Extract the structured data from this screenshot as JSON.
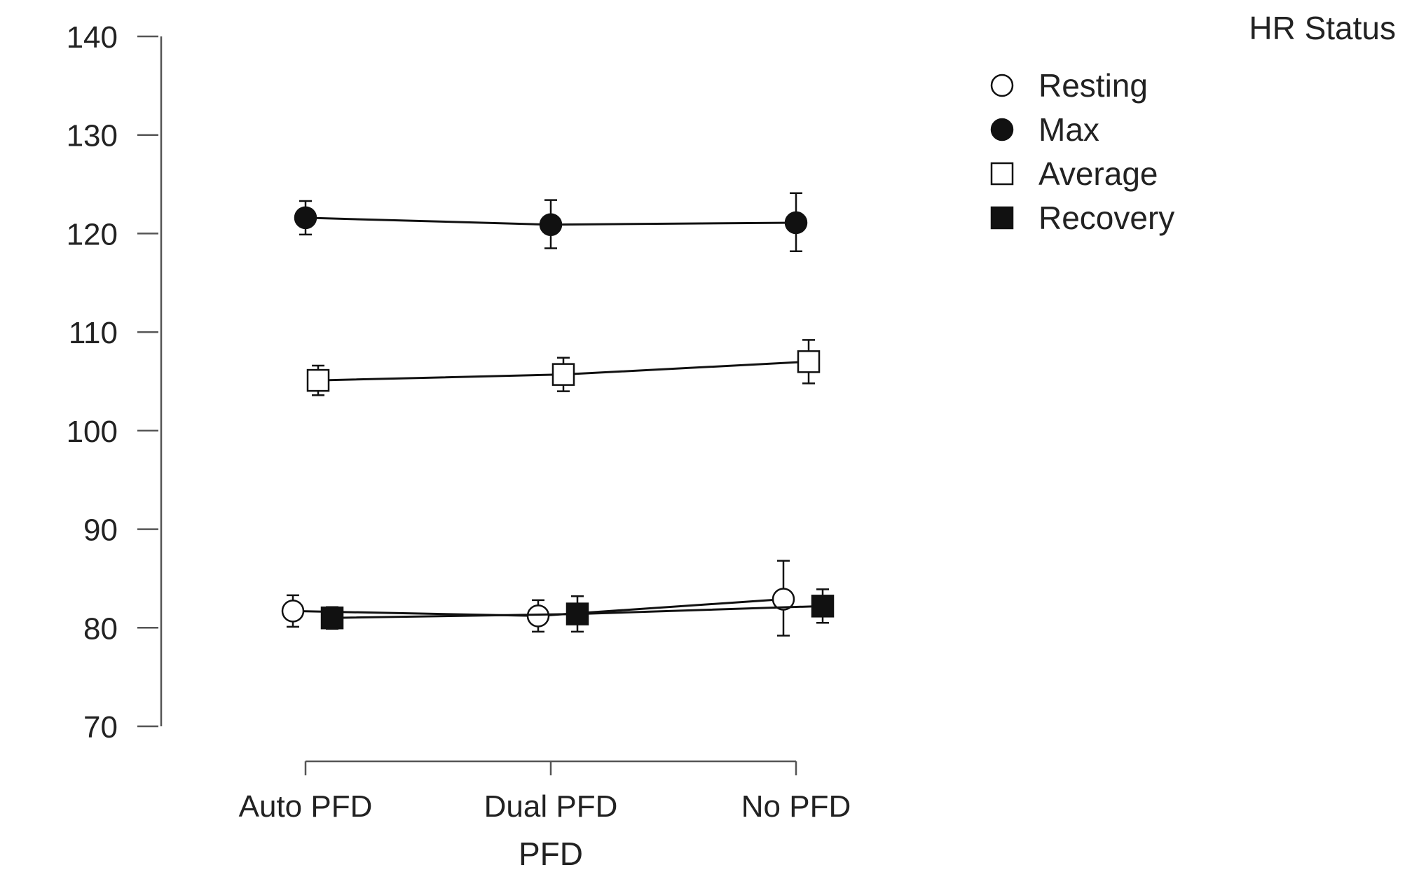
{
  "chart_data": {
    "type": "line",
    "title": "",
    "xlabel": "PFD",
    "ylabel": "",
    "categories": [
      "Auto PFD",
      "Dual PFD",
      "No PFD"
    ],
    "ylim": [
      70,
      140
    ],
    "yticks": [
      70,
      80,
      90,
      100,
      110,
      120,
      130,
      140
    ],
    "grid": false,
    "legend": {
      "title": "HR Status",
      "placement": "top-right"
    },
    "series": [
      {
        "name": "Resting",
        "marker": "circle-open",
        "values": [
          81.7,
          81.2,
          82.9
        ],
        "err_low": [
          80.1,
          79.6,
          79.2
        ],
        "err_high": [
          83.3,
          82.8,
          86.8
        ]
      },
      {
        "name": "Max",
        "marker": "circle-filled",
        "values": [
          121.6,
          120.9,
          121.1
        ],
        "err_low": [
          119.9,
          118.5,
          118.2
        ],
        "err_high": [
          123.3,
          123.4,
          124.1
        ]
      },
      {
        "name": "Average",
        "marker": "square-open",
        "values": [
          105.1,
          105.7,
          107.0
        ],
        "err_low": [
          103.6,
          104.0,
          104.8
        ],
        "err_high": [
          106.6,
          107.4,
          109.2
        ]
      },
      {
        "name": "Recovery",
        "marker": "square-filled",
        "values": [
          81.0,
          81.4,
          82.2
        ],
        "err_low": [
          79.9,
          79.6,
          80.5
        ],
        "err_high": [
          82.1,
          83.2,
          83.9
        ]
      }
    ]
  },
  "colors": {
    "ink": "#111111",
    "axis": "#555555",
    "background": "#ffffff"
  }
}
